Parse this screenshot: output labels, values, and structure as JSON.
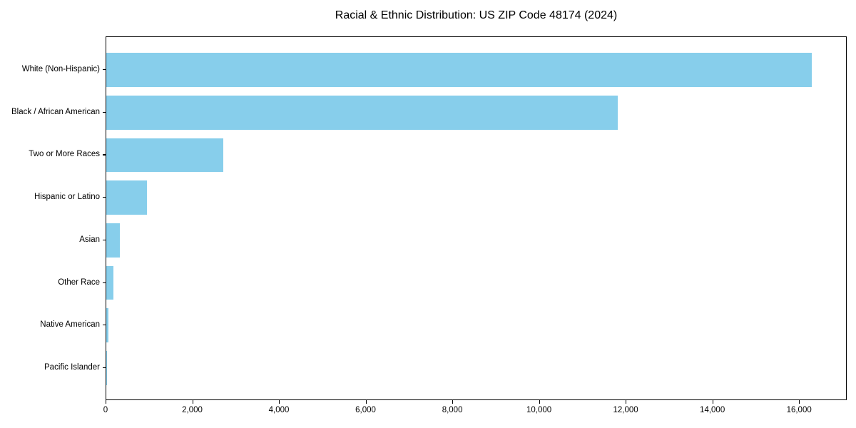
{
  "chart_data": {
    "type": "bar",
    "orientation": "horizontal",
    "title": "Racial & Ethnic Distribution: US ZIP Code 48174 (2024)",
    "categories": [
      "White (Non-Hispanic)",
      "Black / African American",
      "Two or More Races",
      "Hispanic or Latino",
      "Asian",
      "Other Race",
      "Native American",
      "Pacific Islander"
    ],
    "values": [
      16281,
      11793,
      2704,
      941,
      313,
      166,
      50,
      9
    ],
    "xlabel": "",
    "ylabel": "",
    "xlim": [
      0,
      17100
    ],
    "xticks": [
      0,
      2000,
      4000,
      6000,
      8000,
      10000,
      12000,
      14000,
      16000
    ],
    "grid": false,
    "legend": null,
    "bar_color": "#87CEEB",
    "frame_color": "#000000",
    "text_color": "#000000",
    "background": "#ffffff"
  }
}
